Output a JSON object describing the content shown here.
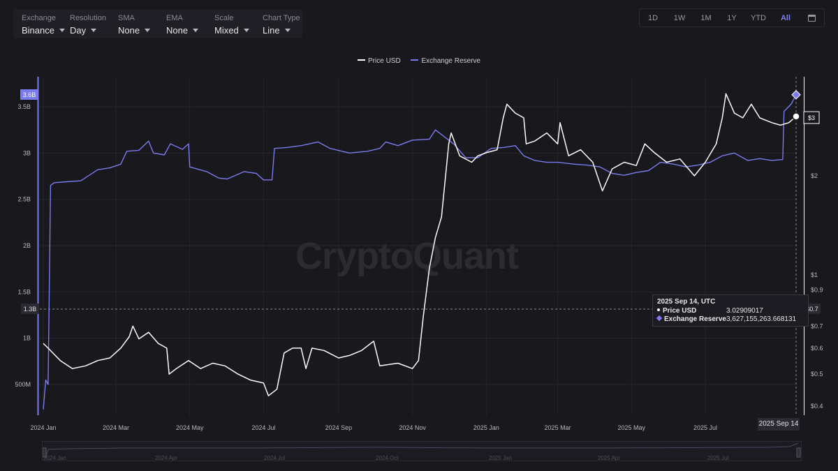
{
  "toolbar": {
    "dropdowns": [
      {
        "label": "Exchange",
        "value": "Binance"
      },
      {
        "label": "Resolution",
        "value": "Day"
      },
      {
        "label": "SMA",
        "value": "None"
      },
      {
        "label": "EMA",
        "value": "None"
      },
      {
        "label": "Scale",
        "value": "Mixed"
      },
      {
        "label": "Chart Type",
        "value": "Line"
      }
    ],
    "ranges": [
      "1D",
      "1W",
      "1M",
      "1Y",
      "YTD",
      "All"
    ],
    "active_range": "All",
    "calendar_icon": "calendar-icon"
  },
  "watermark": "CryptoQuant",
  "tooltip": {
    "date": "2025 Sep 14, UTC",
    "rows": [
      {
        "label": "Price USD",
        "value": "3.02909017"
      },
      {
        "label": "Exchange Reserve",
        "value": "3,627,155,263.668131"
      }
    ]
  },
  "crosshair": {
    "date_label": "2025 Sep 14",
    "left_value_label": "1.3B",
    "right_value_label": "$0.7"
  },
  "navigator": {
    "labels": [
      "2024 Jan",
      "2024 Apr",
      "2024 Jul",
      "2024 Oct",
      "2025 Jan",
      "2025 Apr",
      "2025 Jul"
    ]
  },
  "colors": {
    "background": "#18181d",
    "price": "#ffffff",
    "reserve": "#7b7bf0",
    "grid": "#26262c"
  },
  "chart_data": {
    "type": "line",
    "legend": [
      "Price USD",
      "Exchange Reserve"
    ],
    "legend_position": "top-center",
    "x_ticks": [
      "2024 Jan",
      "2024 Mar",
      "2024 May",
      "2024 Jul",
      "2024 Sep",
      "2024 Nov",
      "2025 Jan",
      "2025 Mar",
      "2025 May",
      "2025 Jul"
    ],
    "left_axis": {
      "ticks": [
        "3.5B",
        "3B",
        "2.5B",
        "2B",
        "1.5B",
        "1B",
        "500M"
      ],
      "current_value_label": "3.6B"
    },
    "right_axis": {
      "scale": "log",
      "ticks": [
        "$2",
        "$1",
        "$0.9",
        "$0.7",
        "$0.6",
        "$0.5",
        "$0.4"
      ],
      "current_value_label": "$3"
    },
    "grid": true,
    "series": [
      {
        "name": "Exchange Reserve",
        "axis": "left",
        "points": [
          [
            "2024-01-01",
            0.23
          ],
          [
            "2024-01-03",
            0.55
          ],
          [
            "2024-01-05",
            0.5
          ],
          [
            "2024-01-07",
            2.65
          ],
          [
            "2024-01-10",
            2.68
          ],
          [
            "2024-01-20",
            2.69
          ],
          [
            "2024-02-01",
            2.7
          ],
          [
            "2024-02-15",
            2.82
          ],
          [
            "2024-02-25",
            2.84
          ],
          [
            "2024-03-05",
            2.88
          ],
          [
            "2024-03-10",
            3.02
          ],
          [
            "2024-03-20",
            3.03
          ],
          [
            "2024-03-28",
            3.13
          ],
          [
            "2024-04-01",
            3.0
          ],
          [
            "2024-04-10",
            2.98
          ],
          [
            "2024-04-15",
            3.1
          ],
          [
            "2024-04-25",
            3.04
          ],
          [
            "2024-04-30",
            3.1
          ],
          [
            "2024-05-01",
            2.85
          ],
          [
            "2024-05-15",
            2.8
          ],
          [
            "2024-05-25",
            2.73
          ],
          [
            "2024-06-01",
            2.72
          ],
          [
            "2024-06-15",
            2.8
          ],
          [
            "2024-06-25",
            2.78
          ],
          [
            "2024-07-01",
            2.71
          ],
          [
            "2024-07-08",
            2.71
          ],
          [
            "2024-07-10",
            3.05
          ],
          [
            "2024-07-20",
            3.06
          ],
          [
            "2024-08-01",
            3.08
          ],
          [
            "2024-08-15",
            3.12
          ],
          [
            "2024-08-25",
            3.05
          ],
          [
            "2024-09-10",
            3.0
          ],
          [
            "2024-09-25",
            3.02
          ],
          [
            "2024-10-05",
            3.05
          ],
          [
            "2024-10-10",
            3.12
          ],
          [
            "2024-10-20",
            3.08
          ],
          [
            "2024-11-01",
            3.14
          ],
          [
            "2024-11-15",
            3.15
          ],
          [
            "2024-11-20",
            3.25
          ],
          [
            "2024-11-25",
            3.2
          ],
          [
            "2024-12-05",
            3.1
          ],
          [
            "2024-12-15",
            2.95
          ],
          [
            "2024-12-25",
            2.95
          ],
          [
            "2025-01-05",
            3.05
          ],
          [
            "2025-01-15",
            3.06
          ],
          [
            "2025-01-25",
            3.08
          ],
          [
            "2025-02-01",
            2.97
          ],
          [
            "2025-02-10",
            2.92
          ],
          [
            "2025-02-20",
            2.9
          ],
          [
            "2025-03-01",
            2.9
          ],
          [
            "2025-03-15",
            2.88
          ],
          [
            "2025-03-25",
            2.87
          ],
          [
            "2025-04-05",
            2.85
          ],
          [
            "2025-04-15",
            2.78
          ],
          [
            "2025-04-25",
            2.76
          ],
          [
            "2025-05-05",
            2.79
          ],
          [
            "2025-05-15",
            2.81
          ],
          [
            "2025-05-25",
            2.9
          ],
          [
            "2025-06-05",
            2.88
          ],
          [
            "2025-06-15",
            2.85
          ],
          [
            "2025-06-25",
            2.87
          ],
          [
            "2025-07-05",
            2.9
          ],
          [
            "2025-07-15",
            2.97
          ],
          [
            "2025-07-25",
            3.0
          ],
          [
            "2025-08-05",
            2.92
          ],
          [
            "2025-08-15",
            2.94
          ],
          [
            "2025-08-25",
            2.92
          ],
          [
            "2025-09-03",
            2.93
          ],
          [
            "2025-09-04",
            3.45
          ],
          [
            "2025-09-10",
            3.53
          ],
          [
            "2025-09-14",
            3.63
          ]
        ]
      },
      {
        "name": "Price USD",
        "axis": "right",
        "points": [
          [
            "2024-01-01",
            0.62
          ],
          [
            "2024-01-05",
            0.6
          ],
          [
            "2024-01-15",
            0.55
          ],
          [
            "2024-01-25",
            0.52
          ],
          [
            "2024-02-05",
            0.53
          ],
          [
            "2024-02-15",
            0.55
          ],
          [
            "2024-02-25",
            0.56
          ],
          [
            "2024-03-05",
            0.6
          ],
          [
            "2024-03-12",
            0.65
          ],
          [
            "2024-03-15",
            0.7
          ],
          [
            "2024-03-20",
            0.64
          ],
          [
            "2024-03-28",
            0.67
          ],
          [
            "2024-04-05",
            0.62
          ],
          [
            "2024-04-12",
            0.6
          ],
          [
            "2024-04-14",
            0.5
          ],
          [
            "2024-04-20",
            0.52
          ],
          [
            "2024-04-30",
            0.55
          ],
          [
            "2024-05-10",
            0.52
          ],
          [
            "2024-05-20",
            0.54
          ],
          [
            "2024-05-30",
            0.53
          ],
          [
            "2024-06-10",
            0.5
          ],
          [
            "2024-06-20",
            0.48
          ],
          [
            "2024-07-01",
            0.47
          ],
          [
            "2024-07-05",
            0.43
          ],
          [
            "2024-07-12",
            0.45
          ],
          [
            "2024-07-18",
            0.58
          ],
          [
            "2024-07-25",
            0.6
          ],
          [
            "2024-08-01",
            0.6
          ],
          [
            "2024-08-05",
            0.52
          ],
          [
            "2024-08-10",
            0.6
          ],
          [
            "2024-08-20",
            0.59
          ],
          [
            "2024-09-01",
            0.56
          ],
          [
            "2024-09-10",
            0.57
          ],
          [
            "2024-09-20",
            0.59
          ],
          [
            "2024-09-30",
            0.63
          ],
          [
            "2024-10-05",
            0.53
          ],
          [
            "2024-10-20",
            0.54
          ],
          [
            "2024-11-01",
            0.52
          ],
          [
            "2024-11-06",
            0.55
          ],
          [
            "2024-11-10",
            0.75
          ],
          [
            "2024-11-15",
            1.05
          ],
          [
            "2024-11-20",
            1.3
          ],
          [
            "2024-11-25",
            1.5
          ],
          [
            "2024-12-01",
            2.5
          ],
          [
            "2024-12-03",
            2.7
          ],
          [
            "2024-12-10",
            2.3
          ],
          [
            "2024-12-20",
            2.2
          ],
          [
            "2024-12-25",
            2.3
          ],
          [
            "2025-01-01",
            2.35
          ],
          [
            "2025-01-10",
            2.4
          ],
          [
            "2025-01-15",
            3.0
          ],
          [
            "2025-01-18",
            3.3
          ],
          [
            "2025-01-25",
            3.1
          ],
          [
            "2025-02-01",
            3.0
          ],
          [
            "2025-02-03",
            2.5
          ],
          [
            "2025-02-10",
            2.55
          ],
          [
            "2025-02-20",
            2.7
          ],
          [
            "2025-03-01",
            2.5
          ],
          [
            "2025-03-03",
            2.9
          ],
          [
            "2025-03-10",
            2.3
          ],
          [
            "2025-03-20",
            2.4
          ],
          [
            "2025-03-30",
            2.2
          ],
          [
            "2025-04-07",
            1.8
          ],
          [
            "2025-04-15",
            2.1
          ],
          [
            "2025-04-25",
            2.2
          ],
          [
            "2025-05-05",
            2.15
          ],
          [
            "2025-05-12",
            2.5
          ],
          [
            "2025-05-20",
            2.35
          ],
          [
            "2025-05-30",
            2.2
          ],
          [
            "2025-06-10",
            2.25
          ],
          [
            "2025-06-22",
            2.0
          ],
          [
            "2025-07-01",
            2.2
          ],
          [
            "2025-07-10",
            2.5
          ],
          [
            "2025-07-15",
            3.0
          ],
          [
            "2025-07-18",
            3.55
          ],
          [
            "2025-07-25",
            3.1
          ],
          [
            "2025-08-01",
            3.0
          ],
          [
            "2025-08-08",
            3.3
          ],
          [
            "2025-08-15",
            3.0
          ],
          [
            "2025-08-25",
            2.9
          ],
          [
            "2025-09-01",
            2.85
          ],
          [
            "2025-09-08",
            2.9
          ],
          [
            "2025-09-14",
            3.03
          ]
        ]
      }
    ]
  }
}
